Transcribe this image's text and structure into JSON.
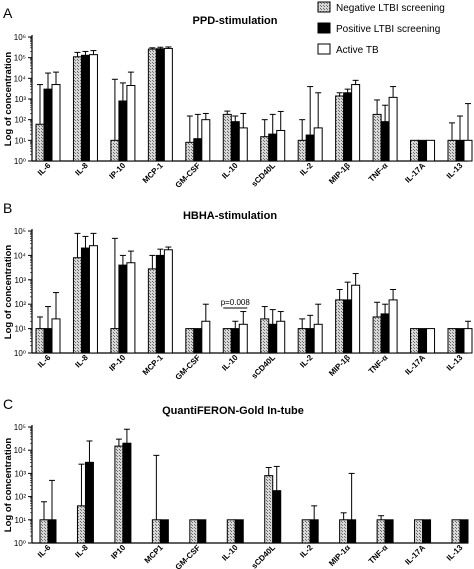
{
  "figure": {
    "legend": [
      {
        "label": "Negative  LTBI screening",
        "fill": "hatch"
      },
      {
        "label": "Positive LTBI screening",
        "fill": "#000000"
      },
      {
        "label": "Active TB",
        "fill": "#ffffff"
      }
    ],
    "colors": {
      "negative": "#b8b8b8",
      "positive": "#000000",
      "active": "#ffffff",
      "axis": "#000000"
    }
  },
  "chart_data": [
    {
      "panel_letter": "A",
      "type": "bar",
      "title": "PPD-stimulation",
      "ylabel": "Log of concentration",
      "yscale": "log",
      "ylim": [
        1,
        1000000
      ],
      "ytick_labels": [
        "10⁰",
        "10¹",
        "10²",
        "10³",
        "10⁴",
        "10⁵",
        "10⁶"
      ],
      "categories": [
        "IL-6",
        "IL-8",
        "IP-10",
        "MCP-1",
        "GM-CSF",
        "IL-10",
        "sCD40L",
        "IL-2",
        "MIP-1β",
        "TNF-α",
        "IL-17A",
        "IL-13"
      ],
      "series": [
        {
          "name": "Negative  LTBI screening",
          "values": [
            60,
            110000,
            10,
            260000,
            8,
            180,
            15,
            10,
            1400,
            180,
            10,
            10
          ],
          "errors": [
            5000,
            180000,
            9000,
            300000,
            150,
            260,
            100,
            100,
            2000,
            900,
            10,
            70
          ]
        },
        {
          "name": "Positive LTBI screening",
          "values": [
            3000,
            130000,
            800,
            270000,
            12,
            80,
            20,
            18,
            2000,
            80,
            10,
            10
          ],
          "errors": [
            18000,
            200000,
            6000,
            320000,
            180,
            150,
            180,
            4000,
            3000,
            500,
            10,
            150
          ]
        },
        {
          "name": "Active TB",
          "values": [
            5000,
            140000,
            4500,
            280000,
            100,
            40,
            30,
            40,
            5000,
            1200,
            10,
            10
          ],
          "errors": [
            20000,
            220000,
            20000,
            330000,
            200,
            200,
            250,
            2000,
            8000,
            4000,
            10,
            600
          ]
        }
      ]
    },
    {
      "panel_letter": "B",
      "type": "bar",
      "title": "HBHA-stimulation",
      "ylabel": "Log of concentration",
      "yscale": "log",
      "ylim": [
        1,
        100000
      ],
      "ytick_labels": [
        "10⁰",
        "10¹",
        "10²",
        "10³",
        "10⁴",
        "10⁵"
      ],
      "categories": [
        "IL-6",
        "IL-8",
        "IP-10",
        "MCP-1",
        "GM-CSF",
        "IL-10",
        "sCD40L",
        "IL-2",
        "MIP-1β",
        "TNF-α",
        "IL-17A",
        "IL-13"
      ],
      "annotations": [
        {
          "text": "p=0.008",
          "category": "IL-10"
        }
      ],
      "series": [
        {
          "name": "Negative  LTBI screening",
          "values": [
            10,
            8000,
            10,
            2800,
            10,
            10,
            25,
            10,
            150,
            30,
            10,
            10
          ],
          "errors": [
            30,
            80000,
            50000,
            10000,
            10,
            10,
            80,
            25,
            400,
            120,
            10,
            10
          ]
        },
        {
          "name": "Positive LTBI screening",
          "values": [
            10,
            20000,
            4000,
            10000,
            10,
            10,
            15,
            10,
            150,
            40,
            10,
            10
          ],
          "errors": [
            80,
            60000,
            10000,
            18000,
            10,
            20,
            60,
            35,
            800,
            100,
            10,
            10
          ]
        },
        {
          "name": "Active TB",
          "values": [
            25,
            25000,
            5000,
            17000,
            20,
            15,
            20,
            15,
            600,
            150,
            10,
            10
          ],
          "errors": [
            300,
            80000,
            15000,
            22000,
            100,
            50,
            50,
            100,
            1800,
            400,
            10,
            20
          ]
        }
      ]
    },
    {
      "panel_letter": "C",
      "type": "bar",
      "title": "QuantiFERON-Gold In-tube",
      "ylabel": "Log of concentration",
      "yscale": "log",
      "ylim": [
        1,
        100000
      ],
      "ytick_labels": [
        "10⁰",
        "10¹",
        "10²",
        "10³",
        "10⁴",
        "10⁵"
      ],
      "categories": [
        "IL-6",
        "IL-8",
        "IP10",
        "MCP1",
        "GM-CSF",
        "IL-10",
        "sCD40L",
        "IL-2",
        "MIP-1α",
        "TNF-α",
        "IL-17A",
        "IL-13"
      ],
      "series": [
        {
          "name": "Negative  LTBI screening",
          "values": [
            10,
            40,
            15000,
            10,
            10,
            10,
            800,
            10,
            10,
            10,
            10,
            10
          ],
          "errors": [
            60,
            2500,
            30000,
            6000,
            10,
            10,
            1800,
            10,
            20,
            15,
            10,
            10
          ]
        },
        {
          "name": "Positive LTBI screening",
          "values": [
            10,
            3000,
            20000,
            10,
            10,
            10,
            180,
            10,
            10,
            10,
            10,
            10
          ],
          "errors": [
            500,
            25000,
            80000,
            10,
            10,
            10,
            2000,
            40,
            1000,
            10,
            10,
            10
          ]
        }
      ]
    }
  ]
}
